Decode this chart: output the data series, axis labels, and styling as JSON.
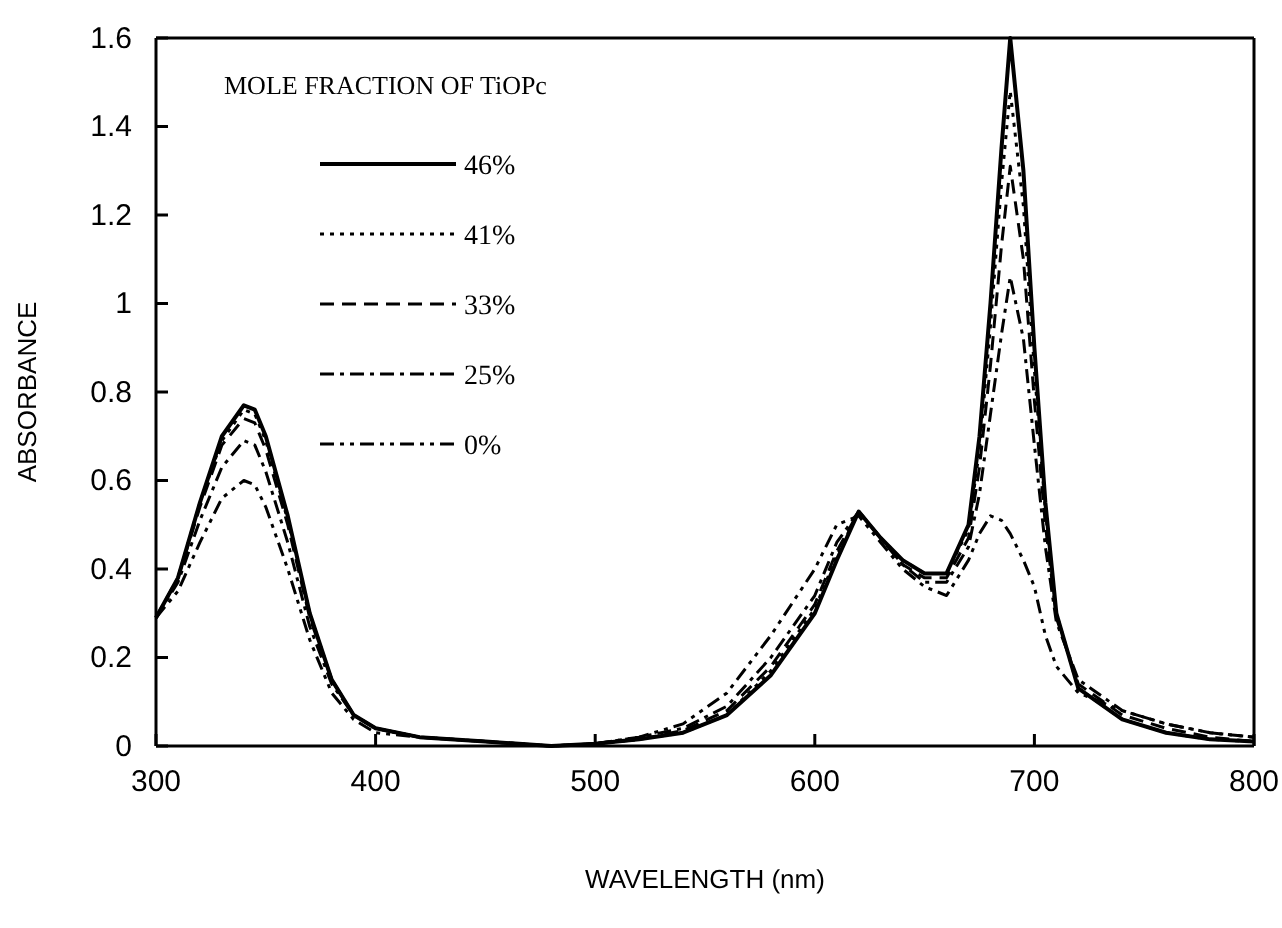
{
  "chart_data": {
    "type": "line",
    "xlabel": "WAVELENGTH (nm)",
    "ylabel": "ABSORBANCE",
    "legend_title": "MOLE FRACTION OF TiOPc",
    "legend": "top left",
    "grid": false,
    "xlim": [
      300,
      800
    ],
    "xticks": [
      300,
      400,
      500,
      600,
      700,
      800
    ],
    "ylim": [
      0,
      1.6
    ],
    "yticks": [
      0,
      0.2,
      0.4,
      0.6,
      0.8,
      1,
      1.2,
      1.4,
      1.6
    ],
    "x": [
      300,
      310,
      320,
      330,
      340,
      345,
      350,
      360,
      370,
      380,
      390,
      400,
      420,
      450,
      480,
      500,
      520,
      540,
      560,
      580,
      600,
      610,
      620,
      630,
      640,
      650,
      660,
      670,
      675,
      680,
      685,
      689,
      695,
      700,
      705,
      710,
      720,
      740,
      760,
      780,
      800
    ],
    "series": [
      {
        "name": "46%",
        "color": "#000000",
        "line_style": "solid",
        "values": [
          0.29,
          0.38,
          0.55,
          0.7,
          0.77,
          0.76,
          0.7,
          0.52,
          0.3,
          0.15,
          0.07,
          0.04,
          0.02,
          0.01,
          0.0,
          0.005,
          0.015,
          0.03,
          0.07,
          0.16,
          0.3,
          0.42,
          0.53,
          0.47,
          0.42,
          0.39,
          0.39,
          0.5,
          0.7,
          1.0,
          1.35,
          1.6,
          1.3,
          0.9,
          0.55,
          0.3,
          0.13,
          0.06,
          0.03,
          0.015,
          0.01
        ]
      },
      {
        "name": "41%",
        "color": "#000000",
        "line_style": "dotted",
        "values": [
          0.29,
          0.38,
          0.55,
          0.69,
          0.76,
          0.75,
          0.69,
          0.51,
          0.3,
          0.15,
          0.07,
          0.04,
          0.02,
          0.01,
          0.0,
          0.005,
          0.015,
          0.03,
          0.07,
          0.17,
          0.31,
          0.43,
          0.53,
          0.47,
          0.42,
          0.39,
          0.39,
          0.49,
          0.67,
          0.95,
          1.27,
          1.48,
          1.22,
          0.85,
          0.53,
          0.3,
          0.13,
          0.06,
          0.03,
          0.015,
          0.01
        ]
      },
      {
        "name": "33%",
        "color": "#000000",
        "line_style": "dashed",
        "values": [
          0.29,
          0.38,
          0.54,
          0.68,
          0.74,
          0.73,
          0.67,
          0.5,
          0.29,
          0.15,
          0.07,
          0.04,
          0.02,
          0.01,
          0.0,
          0.005,
          0.015,
          0.035,
          0.08,
          0.18,
          0.32,
          0.44,
          0.53,
          0.47,
          0.41,
          0.38,
          0.38,
          0.47,
          0.63,
          0.86,
          1.13,
          1.31,
          1.1,
          0.78,
          0.5,
          0.29,
          0.14,
          0.07,
          0.04,
          0.02,
          0.01
        ]
      },
      {
        "name": "25%",
        "color": "#000000",
        "line_style": "dashed",
        "values": [
          0.29,
          0.37,
          0.51,
          0.63,
          0.69,
          0.68,
          0.62,
          0.46,
          0.27,
          0.14,
          0.07,
          0.04,
          0.02,
          0.01,
          0.0,
          0.005,
          0.02,
          0.04,
          0.09,
          0.2,
          0.34,
          0.46,
          0.53,
          0.47,
          0.41,
          0.37,
          0.37,
          0.45,
          0.57,
          0.75,
          0.93,
          1.06,
          0.92,
          0.68,
          0.45,
          0.28,
          0.15,
          0.08,
          0.05,
          0.03,
          0.02
        ]
      },
      {
        "name": "0%",
        "color": "#000000",
        "line_style": "dashed",
        "values": [
          0.29,
          0.35,
          0.46,
          0.56,
          0.6,
          0.59,
          0.54,
          0.4,
          0.24,
          0.12,
          0.06,
          0.03,
          0.02,
          0.01,
          0.0,
          0.005,
          0.02,
          0.05,
          0.12,
          0.25,
          0.4,
          0.5,
          0.52,
          0.46,
          0.4,
          0.36,
          0.34,
          0.42,
          0.48,
          0.52,
          0.51,
          0.48,
          0.42,
          0.36,
          0.25,
          0.18,
          0.12,
          0.08,
          0.05,
          0.03,
          0.02
        ]
      }
    ]
  }
}
